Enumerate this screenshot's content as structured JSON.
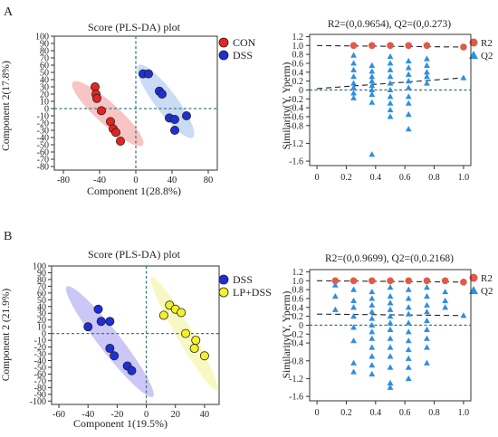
{
  "panels": [
    {
      "id": "A",
      "label": "A",
      "score": {
        "title": "Score (PLS-DA) plot",
        "xlabel": "Component 1(28.8%)",
        "ylabel": "Component 2(17.8%)",
        "xticks": [
          -80,
          -40,
          0,
          40,
          80
        ],
        "yticks": [
          100,
          90,
          80,
          70,
          60,
          50,
          40,
          30,
          20,
          10,
          0,
          -10,
          -20,
          -30,
          -40,
          -50,
          -60,
          -70,
          -80
        ],
        "legend": [
          "CON",
          "DSS"
        ]
      },
      "perm": {
        "title": "R2=(0,0.9654), Q2=(0,0.273)",
        "ylabel": "Similarity(Y, Yperm)",
        "xticks": [
          "0",
          "0.2",
          "0.4",
          "0.6",
          "0.8",
          "1.0"
        ],
        "yticks": [
          "1.2",
          "1.0",
          "0.8",
          "0.6",
          "0.4",
          "0.2",
          "0",
          "-0.2",
          "-0.4",
          "-0.6",
          "-0.8",
          "-1.2",
          "-1.6"
        ],
        "legend": [
          "R2",
          "Q2"
        ]
      }
    },
    {
      "id": "B",
      "label": "B",
      "score": {
        "title": "Score (PLS-DA) plot",
        "xlabel": "Component 1(19.5%)",
        "ylabel": "Component 2  (21.9%)",
        "xticks": [
          -60,
          -40,
          -20,
          0,
          20,
          40
        ],
        "yticks": [
          100,
          90,
          80,
          70,
          60,
          50,
          40,
          30,
          20,
          10,
          0,
          -10,
          -20,
          -30,
          -40,
          -50,
          -60,
          -70,
          -80,
          -90,
          -100
        ],
        "legend": [
          "DSS",
          "LP+DSS"
        ]
      },
      "perm": {
        "title": "R2=(0,0.9699), Q2=(0,0.2168)",
        "ylabel": "Similarity(Y, Yperm)",
        "xticks": [
          "0",
          "0.2",
          "0.4",
          "0.6",
          "0.8",
          "1.0"
        ],
        "yticks": [
          "1.2",
          "1.0",
          "0.8",
          "0.6",
          "0.4",
          "0.2",
          "0",
          "-0.2",
          "-0.4",
          "-0.8",
          "-1.2",
          "-1.6"
        ],
        "legend": [
          "R2",
          "Q2"
        ]
      }
    }
  ],
  "colors": {
    "con": "#e8231f",
    "dss": "#1f2fd6",
    "lpdss": "#f4f02a",
    "ellipse_red": "#f6b0b0",
    "ellipse_blue": "#b8cff2",
    "ellipse_purple": "#b9b4f4",
    "ellipse_yellow": "#f6f5b0",
    "r2_marker": "#e05a47",
    "q2_marker": "#2e8fe0",
    "refline": "#3e7a7a"
  },
  "chart_data": [
    {
      "type": "scatter",
      "title": "Score (PLS-DA) plot",
      "xlabel": "Component 1(28.8%)",
      "ylabel": "Component 2(17.8%)",
      "xlim": [
        -90,
        90
      ],
      "ylim": [
        -85,
        100
      ],
      "series": [
        {
          "name": "CON",
          "points": [
            [
              -45,
              30
            ],
            [
              -44,
              20
            ],
            [
              -43,
              14
            ],
            [
              -38,
              -3
            ],
            [
              -28,
              -18
            ],
            [
              -25,
              -28
            ],
            [
              -22,
              -33
            ],
            [
              -17,
              -45
            ]
          ]
        },
        {
          "name": "DSS",
          "points": [
            [
              8,
              48
            ],
            [
              14,
              48
            ],
            [
              26,
              24
            ],
            [
              29,
              20
            ],
            [
              37,
              -13
            ],
            [
              43,
              -15
            ],
            [
              43,
              -30
            ],
            [
              56,
              -10
            ]
          ]
        }
      ]
    },
    {
      "type": "scatter",
      "title": "R2=(0,0.9654), Q2=(0,0.273)",
      "ylabel": "Similarity(Y, Yperm)",
      "xlim": [
        -0.05,
        1.05
      ],
      "ylim": [
        -1.7,
        1.25
      ],
      "series": [
        {
          "name": "R2",
          "points": [
            [
              0.25,
              1.0
            ],
            [
              0.375,
              1.0
            ],
            [
              0.5,
              1.0
            ],
            [
              0.625,
              1.0
            ],
            [
              0.75,
              1.0
            ],
            [
              1.0,
              0.9654
            ]
          ],
          "fit": [
            [
              0,
              0.998
            ],
            [
              1.0,
              0.9654
            ]
          ]
        },
        {
          "name": "Q2",
          "points": [
            [
              0.25,
              0.78
            ],
            [
              0.25,
              0.6
            ],
            [
              0.25,
              0.45
            ],
            [
              0.25,
              0.3
            ],
            [
              0.25,
              0.15
            ],
            [
              0.25,
              0.05
            ],
            [
              0.25,
              -0.07
            ],
            [
              0.25,
              -0.18
            ],
            [
              0.375,
              0.55
            ],
            [
              0.375,
              0.42
            ],
            [
              0.375,
              0.3
            ],
            [
              0.375,
              0.2
            ],
            [
              0.375,
              0.1
            ],
            [
              0.375,
              0.0
            ],
            [
              0.375,
              -0.1
            ],
            [
              0.375,
              -0.28
            ],
            [
              0.375,
              -1.45
            ],
            [
              0.5,
              0.75
            ],
            [
              0.5,
              0.6
            ],
            [
              0.5,
              0.45
            ],
            [
              0.5,
              0.3
            ],
            [
              0.5,
              0.15
            ],
            [
              0.5,
              0.0
            ],
            [
              0.5,
              -0.15
            ],
            [
              0.5,
              -0.3
            ],
            [
              0.5,
              -0.45
            ],
            [
              0.5,
              -0.6
            ],
            [
              0.625,
              0.65
            ],
            [
              0.625,
              0.5
            ],
            [
              0.625,
              0.35
            ],
            [
              0.625,
              0.2
            ],
            [
              0.625,
              0.05
            ],
            [
              0.625,
              -0.15
            ],
            [
              0.625,
              -0.3
            ],
            [
              0.625,
              -0.55
            ],
            [
              0.625,
              -0.88
            ],
            [
              0.75,
              0.7
            ],
            [
              0.75,
              0.55
            ],
            [
              0.75,
              0.4
            ],
            [
              0.75,
              0.3
            ],
            [
              0.75,
              0.15
            ],
            [
              1.0,
              0.273
            ]
          ],
          "fit": [
            [
              0,
              0.03
            ],
            [
              1.0,
              0.273
            ]
          ]
        }
      ]
    },
    {
      "type": "scatter",
      "title": "Score (PLS-DA) plot",
      "xlabel": "Component 1(19.5%)",
      "ylabel": "Component 2  (21.9%)",
      "xlim": [
        -65,
        50
      ],
      "ylim": [
        -105,
        100
      ],
      "series": [
        {
          "name": "DSS",
          "points": [
            [
              -40,
              10
            ],
            [
              -33,
              36
            ],
            [
              -31,
              18
            ],
            [
              -25,
              18
            ],
            [
              -25,
              -22
            ],
            [
              -22,
              -33
            ],
            [
              -13,
              -48
            ],
            [
              -10,
              -55
            ]
          ]
        },
        {
          "name": "LP+DSS",
          "points": [
            [
              12,
              27
            ],
            [
              16,
              42
            ],
            [
              20,
              36
            ],
            [
              24,
              31
            ],
            [
              27,
              0
            ],
            [
              33,
              -22
            ],
            [
              34,
              -10
            ],
            [
              40,
              -33
            ]
          ]
        }
      ]
    },
    {
      "type": "scatter",
      "title": "R2=(0,0.9699), Q2=(0,0.2168)",
      "ylabel": "Similarity(Y, Yperm)",
      "xlim": [
        -0.05,
        1.05
      ],
      "ylim": [
        -1.7,
        1.25
      ],
      "series": [
        {
          "name": "R2",
          "points": [
            [
              0.125,
              1.0
            ],
            [
              0.25,
              1.0
            ],
            [
              0.375,
              1.0
            ],
            [
              0.5,
              1.0
            ],
            [
              0.625,
              1.0
            ],
            [
              0.75,
              1.0
            ],
            [
              0.875,
              1.0
            ],
            [
              1.0,
              0.9699
            ]
          ],
          "fit": [
            [
              0,
              1.0
            ],
            [
              1.0,
              0.9699
            ]
          ]
        },
        {
          "name": "Q2",
          "points": [
            [
              0.125,
              0.9
            ],
            [
              0.125,
              0.65
            ],
            [
              0.125,
              0.35
            ],
            [
              0.25,
              0.8
            ],
            [
              0.25,
              0.55
            ],
            [
              0.25,
              0.4
            ],
            [
              0.25,
              0.2
            ],
            [
              0.25,
              -0.05
            ],
            [
              0.25,
              -0.35
            ],
            [
              0.25,
              -0.85
            ],
            [
              0.25,
              -1.05
            ],
            [
              0.375,
              0.75
            ],
            [
              0.375,
              0.6
            ],
            [
              0.375,
              0.45
            ],
            [
              0.375,
              0.3
            ],
            [
              0.375,
              0.15
            ],
            [
              0.375,
              0.0
            ],
            [
              0.375,
              -0.15
            ],
            [
              0.375,
              -0.3
            ],
            [
              0.375,
              -0.5
            ],
            [
              0.375,
              -0.7
            ],
            [
              0.375,
              -0.9
            ],
            [
              0.375,
              -1.1
            ],
            [
              0.5,
              0.85
            ],
            [
              0.5,
              0.65
            ],
            [
              0.5,
              0.5
            ],
            [
              0.5,
              0.35
            ],
            [
              0.5,
              0.2
            ],
            [
              0.5,
              0.05
            ],
            [
              0.5,
              -0.1
            ],
            [
              0.5,
              -0.3
            ],
            [
              0.5,
              -0.5
            ],
            [
              0.5,
              -0.7
            ],
            [
              0.5,
              -0.95
            ],
            [
              0.5,
              -1.3
            ],
            [
              0.5,
              -1.4
            ],
            [
              0.625,
              0.8
            ],
            [
              0.625,
              0.6
            ],
            [
              0.625,
              0.4
            ],
            [
              0.625,
              0.25
            ],
            [
              0.625,
              0.05
            ],
            [
              0.625,
              -0.15
            ],
            [
              0.625,
              -0.35
            ],
            [
              0.625,
              -0.55
            ],
            [
              0.625,
              -0.75
            ],
            [
              0.625,
              -0.95
            ],
            [
              0.625,
              -1.2
            ],
            [
              0.75,
              0.85
            ],
            [
              0.75,
              0.65
            ],
            [
              0.75,
              0.45
            ],
            [
              0.75,
              0.3
            ],
            [
              0.75,
              0.1
            ],
            [
              0.75,
              -0.1
            ],
            [
              0.75,
              -0.3
            ],
            [
              0.75,
              -0.5
            ],
            [
              0.75,
              -0.85
            ],
            [
              0.875,
              0.75
            ],
            [
              0.875,
              0.55
            ],
            [
              0.875,
              0.4
            ],
            [
              1.0,
              0.2168
            ]
          ],
          "fit": [
            [
              0,
              0.25
            ],
            [
              1.0,
              0.2168
            ]
          ]
        }
      ]
    }
  ]
}
